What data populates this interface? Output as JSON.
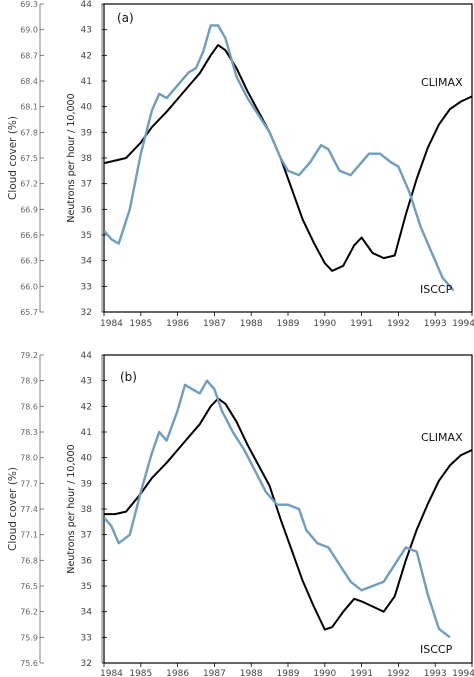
{
  "chart_data": [
    {
      "type": "line",
      "panel_label": "(a)",
      "xlabel": "",
      "x_ticks": [
        1984,
        1985,
        1986,
        1987,
        1988,
        1989,
        1990,
        1991,
        1992,
        1993,
        1994
      ],
      "xlim": [
        1984,
        1994
      ],
      "left_axis": {
        "label": "Cloud cover (%)",
        "ylim": [
          65.7,
          69.3
        ],
        "ticks": [
          "65.7",
          "66.0",
          "66.3",
          "66.6",
          "66.9",
          "67.2",
          "67.5",
          "67.8",
          "68.1",
          "68.4",
          "68.7",
          "69.0",
          "69.3"
        ]
      },
      "right_axis": {
        "label": "Neutrons per hour / 10,000",
        "ylim": [
          32,
          44
        ],
        "ticks": [
          "32",
          "33",
          "34",
          "35",
          "36",
          "37",
          "38",
          "39",
          "40",
          "41",
          "42",
          "43",
          "44"
        ]
      },
      "series": [
        {
          "name": "CLIMAX",
          "color": "#000000",
          "axis": "right",
          "x": [
            1984.0,
            1984.3,
            1984.6,
            1985.0,
            1985.3,
            1985.7,
            1986.0,
            1986.3,
            1986.6,
            1986.9,
            1987.1,
            1987.3,
            1987.6,
            1987.9,
            1988.2,
            1988.5,
            1988.8,
            1989.1,
            1989.4,
            1989.7,
            1990.0,
            1990.2,
            1990.5,
            1990.8,
            1991.0,
            1991.3,
            1991.6,
            1991.9,
            1992.2,
            1992.5,
            1992.8,
            1993.1,
            1993.4,
            1993.7,
            1994.0
          ],
          "y": [
            37.8,
            37.9,
            38.0,
            38.6,
            39.2,
            39.8,
            40.3,
            40.8,
            41.3,
            42.0,
            42.4,
            42.2,
            41.5,
            40.6,
            39.8,
            39.0,
            38.0,
            36.8,
            35.6,
            34.7,
            33.9,
            33.6,
            33.8,
            34.6,
            34.9,
            34.3,
            34.1,
            34.2,
            35.8,
            37.2,
            38.4,
            39.3,
            39.9,
            40.2,
            40.4
          ]
        },
        {
          "name": "ISCCP",
          "color": "#6d9dc0",
          "axis": "left",
          "x": [
            1984.0,
            1984.2,
            1984.4,
            1984.7,
            1985.0,
            1985.3,
            1985.5,
            1985.7,
            1986.0,
            1986.3,
            1986.5,
            1986.7,
            1986.9,
            1987.1,
            1987.3,
            1987.6,
            1987.9,
            1988.2,
            1988.5,
            1988.8,
            1989.0,
            1989.3,
            1989.6,
            1989.9,
            1990.1,
            1990.4,
            1990.7,
            1991.0,
            1991.2,
            1991.5,
            1991.8,
            1992.0,
            1992.3,
            1992.6,
            1992.9,
            1993.2,
            1993.5
          ],
          "y": [
            66.65,
            66.55,
            66.5,
            66.9,
            67.55,
            68.05,
            68.25,
            68.2,
            68.35,
            68.5,
            68.55,
            68.75,
            69.05,
            69.05,
            68.9,
            68.45,
            68.2,
            68.0,
            67.8,
            67.5,
            67.35,
            67.3,
            67.45,
            67.65,
            67.6,
            67.35,
            67.3,
            67.45,
            67.55,
            67.55,
            67.45,
            67.4,
            67.1,
            66.7,
            66.4,
            66.1,
            65.95
          ]
        }
      ]
    },
    {
      "type": "line",
      "panel_label": "(b)",
      "xlabel": "",
      "x_ticks": [
        1984,
        1985,
        1986,
        1987,
        1988,
        1989,
        1990,
        1991,
        1992,
        1993,
        1994
      ],
      "xlim": [
        1984,
        1994
      ],
      "left_axis": {
        "label": "Cloud cover (%)",
        "ylim": [
          75.6,
          79.2
        ],
        "ticks": [
          "75.6",
          "75.9",
          "76.2",
          "76.5",
          "76.8",
          "77.1",
          "77.4",
          "77.7",
          "78.0",
          "78.3",
          "78.6",
          "78.9",
          "79.2"
        ]
      },
      "right_axis": {
        "label": "Neutrons per hour / 10,000",
        "ylim": [
          32,
          44
        ],
        "ticks": [
          "32",
          "33",
          "34",
          "35",
          "36",
          "37",
          "38",
          "39",
          "40",
          "41",
          "42",
          "43",
          "44"
        ]
      },
      "series": [
        {
          "name": "CLIMAX",
          "color": "#000000",
          "axis": "right",
          "x": [
            1984.0,
            1984.3,
            1984.6,
            1985.0,
            1985.3,
            1985.7,
            1986.0,
            1986.3,
            1986.6,
            1986.9,
            1987.1,
            1987.3,
            1987.6,
            1987.9,
            1988.2,
            1988.5,
            1988.8,
            1989.1,
            1989.4,
            1989.7,
            1990.0,
            1990.2,
            1990.5,
            1990.8,
            1991.0,
            1991.3,
            1991.6,
            1991.9,
            1992.2,
            1992.5,
            1992.8,
            1993.1,
            1993.4,
            1993.7,
            1994.0
          ],
          "y": [
            37.8,
            37.8,
            37.9,
            38.6,
            39.2,
            39.8,
            40.3,
            40.8,
            41.3,
            42.0,
            42.3,
            42.1,
            41.4,
            40.5,
            39.7,
            38.9,
            37.6,
            36.4,
            35.2,
            34.2,
            33.3,
            33.4,
            34.0,
            34.5,
            34.4,
            34.2,
            34.0,
            34.6,
            36.0,
            37.2,
            38.2,
            39.1,
            39.7,
            40.1,
            40.3
          ]
        },
        {
          "name": "ISCCP",
          "color": "#6d9dc0",
          "axis": "left",
          "x": [
            1984.0,
            1984.2,
            1984.4,
            1984.7,
            1985.0,
            1985.3,
            1985.5,
            1985.7,
            1986.0,
            1986.2,
            1986.4,
            1986.6,
            1986.8,
            1987.0,
            1987.2,
            1987.5,
            1987.8,
            1988.1,
            1988.4,
            1988.7,
            1989.0,
            1989.3,
            1989.5,
            1989.8,
            1990.1,
            1990.4,
            1990.7,
            1991.0,
            1991.3,
            1991.6,
            1991.9,
            1992.2,
            1992.5,
            1992.8,
            1993.1,
            1993.4
          ],
          "y": [
            77.3,
            77.2,
            77.0,
            77.1,
            77.6,
            78.05,
            78.3,
            78.2,
            78.55,
            78.85,
            78.8,
            78.75,
            78.9,
            78.8,
            78.55,
            78.3,
            78.1,
            77.85,
            77.6,
            77.45,
            77.45,
            77.4,
            77.15,
            77.0,
            76.95,
            76.75,
            76.55,
            76.45,
            76.5,
            76.55,
            76.75,
            76.95,
            76.9,
            76.4,
            76.0,
            75.9
          ]
        }
      ]
    }
  ]
}
